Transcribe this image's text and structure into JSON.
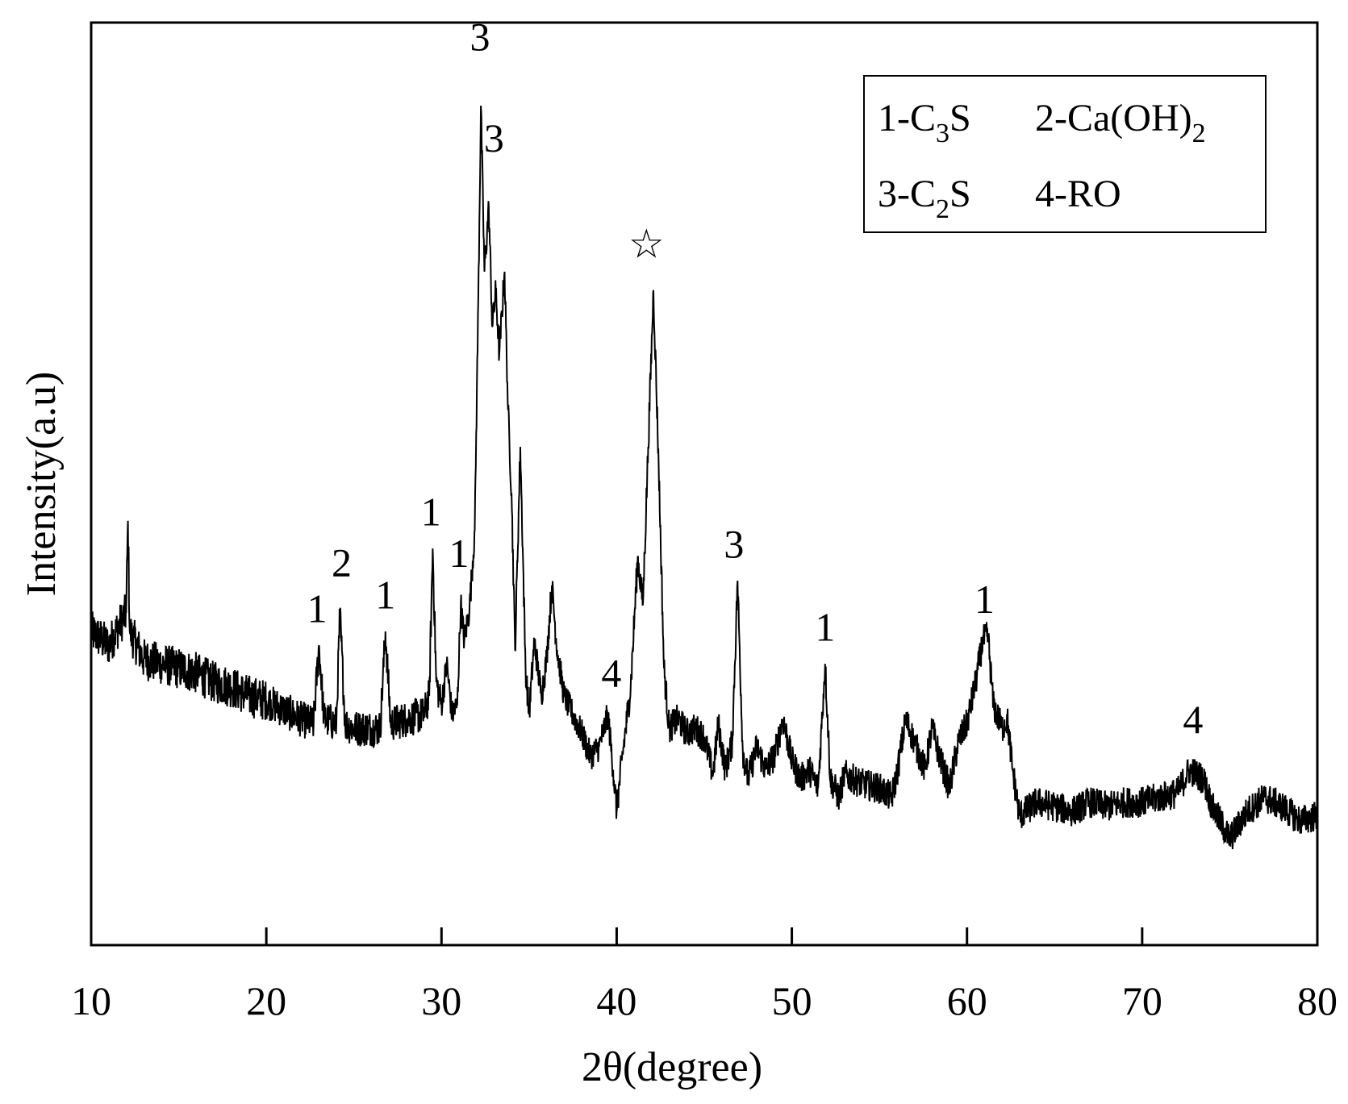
{
  "chart_data": {
    "type": "line",
    "xlabel": "2θ(degree)",
    "ylabel": "Intensity(a.u)",
    "xlim": [
      10,
      80
    ],
    "ylim": [
      0,
      100
    ],
    "xticks": [
      "10",
      "20",
      "30",
      "40",
      "50",
      "60",
      "70",
      "80"
    ],
    "grid": false,
    "legend_position": "top-right",
    "legend": [
      {
        "id": "1",
        "text": "1-C",
        "sub": "3",
        "tail": "S"
      },
      {
        "id": "2",
        "text": "2-Ca(OH)",
        "sub": "2",
        "tail": ""
      },
      {
        "id": "3",
        "text": "3-C",
        "sub": "2",
        "tail": "S"
      },
      {
        "id": "4",
        "text": "4-RO",
        "sub": "",
        "tail": ""
      }
    ],
    "series": [
      {
        "color": "#000000",
        "points": [
          [
            10.0,
            34.0
          ],
          [
            11.0,
            32.5
          ],
          [
            12.0,
            36.0
          ],
          [
            12.1,
            46.0
          ],
          [
            12.2,
            34.0
          ],
          [
            13.0,
            31.0
          ],
          [
            14.0,
            30.5
          ],
          [
            15.0,
            30.0
          ],
          [
            16.0,
            29.5
          ],
          [
            17.0,
            28.5
          ],
          [
            18.0,
            28.0
          ],
          [
            19.0,
            27.0
          ],
          [
            20.0,
            26.5
          ],
          [
            21.0,
            25.5
          ],
          [
            22.0,
            24.5
          ],
          [
            22.7,
            24.0
          ],
          [
            23.0,
            32.5
          ],
          [
            23.3,
            24.5
          ],
          [
            24.0,
            24.0
          ],
          [
            24.2,
            36.0
          ],
          [
            24.5,
            24.0
          ],
          [
            25.0,
            23.5
          ],
          [
            26.0,
            23.5
          ],
          [
            26.5,
            23.5
          ],
          [
            26.8,
            34.0
          ],
          [
            27.1,
            24.0
          ],
          [
            28.0,
            24.5
          ],
          [
            29.0,
            25.0
          ],
          [
            29.3,
            27.0
          ],
          [
            29.5,
            43.0
          ],
          [
            29.7,
            28.5
          ],
          [
            30.0,
            26.0
          ],
          [
            30.3,
            30.5
          ],
          [
            30.6,
            25.0
          ],
          [
            30.9,
            26.0
          ],
          [
            31.1,
            37.0
          ],
          [
            31.3,
            33.0
          ],
          [
            31.6,
            36.5
          ],
          [
            31.9,
            45.0
          ],
          [
            32.1,
            70.0
          ],
          [
            32.25,
            91.0
          ],
          [
            32.45,
            73.0
          ],
          [
            32.7,
            80.0
          ],
          [
            32.9,
            67.0
          ],
          [
            33.1,
            71.0
          ],
          [
            33.3,
            64.0
          ],
          [
            33.6,
            73.0
          ],
          [
            33.8,
            58.0
          ],
          [
            34.0,
            49.0
          ],
          [
            34.2,
            32.0
          ],
          [
            34.5,
            54.0
          ],
          [
            34.8,
            30.0
          ],
          [
            35.0,
            25.0
          ],
          [
            35.3,
            33.0
          ],
          [
            35.7,
            27.0
          ],
          [
            36.0,
            31.0
          ],
          [
            36.3,
            39.0
          ],
          [
            36.6,
            32.0
          ],
          [
            37.0,
            27.0
          ],
          [
            37.5,
            25.0
          ],
          [
            38.0,
            23.0
          ],
          [
            38.5,
            20.5
          ],
          [
            39.0,
            21.5
          ],
          [
            39.5,
            25.0
          ],
          [
            39.8,
            19.0
          ],
          [
            40.0,
            14.5
          ],
          [
            40.3,
            20.0
          ],
          [
            40.8,
            28.0
          ],
          [
            41.2,
            42.0
          ],
          [
            41.5,
            37.0
          ],
          [
            41.8,
            54.0
          ],
          [
            42.1,
            71.0
          ],
          [
            42.4,
            52.0
          ],
          [
            42.7,
            30.0
          ],
          [
            43.0,
            23.5
          ],
          [
            43.5,
            24.5
          ],
          [
            44.0,
            23.0
          ],
          [
            44.5,
            23.5
          ],
          [
            45.0,
            22.5
          ],
          [
            45.5,
            18.5
          ],
          [
            45.8,
            24.0
          ],
          [
            46.2,
            19.0
          ],
          [
            46.6,
            22.0
          ],
          [
            46.9,
            39.5
          ],
          [
            47.2,
            21.0
          ],
          [
            47.5,
            18.0
          ],
          [
            48.0,
            21.5
          ],
          [
            48.5,
            19.0
          ],
          [
            49.0,
            20.5
          ],
          [
            49.5,
            24.5
          ],
          [
            50.0,
            20.0
          ],
          [
            50.5,
            18.0
          ],
          [
            51.0,
            19.0
          ],
          [
            51.5,
            17.0
          ],
          [
            51.9,
            30.5
          ],
          [
            52.2,
            18.0
          ],
          [
            52.7,
            16.0
          ],
          [
            53.0,
            18.5
          ],
          [
            54.0,
            17.5
          ],
          [
            55.0,
            17.0
          ],
          [
            55.7,
            16.0
          ],
          [
            56.0,
            18.5
          ],
          [
            56.5,
            24.5
          ],
          [
            57.0,
            22.0
          ],
          [
            57.6,
            19.0
          ],
          [
            58.0,
            23.5
          ],
          [
            58.5,
            20.0
          ],
          [
            59.0,
            17.0
          ],
          [
            59.5,
            22.0
          ],
          [
            60.0,
            24.0
          ],
          [
            60.5,
            28.5
          ],
          [
            60.9,
            33.0
          ],
          [
            61.2,
            33.5
          ],
          [
            61.5,
            26.0
          ],
          [
            62.0,
            23.5
          ],
          [
            62.3,
            24.5
          ],
          [
            62.6,
            19.0
          ],
          [
            63.0,
            14.0
          ],
          [
            64.0,
            15.5
          ],
          [
            65.0,
            15.0
          ],
          [
            66.0,
            14.5
          ],
          [
            67.0,
            15.5
          ],
          [
            68.0,
            15.0
          ],
          [
            69.0,
            15.5
          ],
          [
            70.0,
            15.5
          ],
          [
            71.0,
            16.0
          ],
          [
            72.0,
            16.5
          ],
          [
            72.7,
            19.0
          ],
          [
            73.5,
            18.0
          ],
          [
            74.0,
            15.0
          ],
          [
            75.0,
            11.5
          ],
          [
            76.0,
            14.5
          ],
          [
            77.0,
            16.0
          ],
          [
            78.0,
            15.0
          ],
          [
            79.0,
            13.5
          ],
          [
            80.0,
            14.0
          ]
        ]
      }
    ],
    "annotations": [
      {
        "label": "1",
        "x": 22.9,
        "y": 35.0
      },
      {
        "label": "2",
        "x": 24.3,
        "y": 40.0
      },
      {
        "label": "1",
        "x": 26.8,
        "y": 36.5
      },
      {
        "label": "1",
        "x": 29.4,
        "y": 45.5
      },
      {
        "label": "1",
        "x": 31.0,
        "y": 41.0
      },
      {
        "label": "3",
        "x": 32.2,
        "y": 97.0
      },
      {
        "label": "3",
        "x": 33.0,
        "y": 86.0
      },
      {
        "label": "☆",
        "x": 41.7,
        "y": 74.5
      },
      {
        "label": "4",
        "x": 39.7,
        "y": 28.0
      },
      {
        "label": "3",
        "x": 46.7,
        "y": 42.0
      },
      {
        "label": "1",
        "x": 51.9,
        "y": 33.0
      },
      {
        "label": "1",
        "x": 61.0,
        "y": 36.0
      },
      {
        "label": "4",
        "x": 72.9,
        "y": 23.0
      }
    ]
  }
}
